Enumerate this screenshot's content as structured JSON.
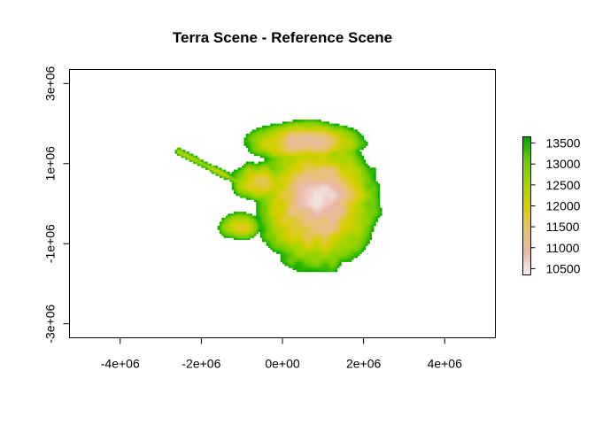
{
  "chart_data": {
    "type": "heatmap",
    "title": "Terra Scene - Reference Scene",
    "xlabel": "",
    "ylabel": "",
    "xlim": [
      -5250000,
      5250000
    ],
    "ylim": [
      -3350000,
      3350000
    ],
    "x_ticks": [
      {
        "value": -4000000,
        "label": "-4e+06"
      },
      {
        "value": -2000000,
        "label": "-2e+06"
      },
      {
        "value": 0,
        "label": "0e+00"
      },
      {
        "value": 2000000,
        "label": "2e+06"
      },
      {
        "value": 4000000,
        "label": "4e+06"
      }
    ],
    "y_ticks": [
      {
        "value": -3000000,
        "label": "-3e+06"
      },
      {
        "value": -1000000,
        "label": "-1e+06"
      },
      {
        "value": 1000000,
        "label": "1e+06"
      },
      {
        "value": 3000000,
        "label": "3e+06"
      }
    ],
    "legend": {
      "position": "right",
      "min": 10350,
      "max": 13650,
      "ticks": [
        10500,
        11000,
        11500,
        12000,
        12500,
        13000,
        13500
      ],
      "colors": [
        "#F2F2F2",
        "#EBB9A9",
        "#E6C26C",
        "#D7CF00",
        "#A3D400",
        "#6CCB00",
        "#00A600"
      ]
    },
    "raster_extent": {
      "xmin": -2650000,
      "xmax": 2750000,
      "ymin": -2250000,
      "ymax": 2200000
    },
    "value_range": [
      10500,
      13600
    ]
  }
}
